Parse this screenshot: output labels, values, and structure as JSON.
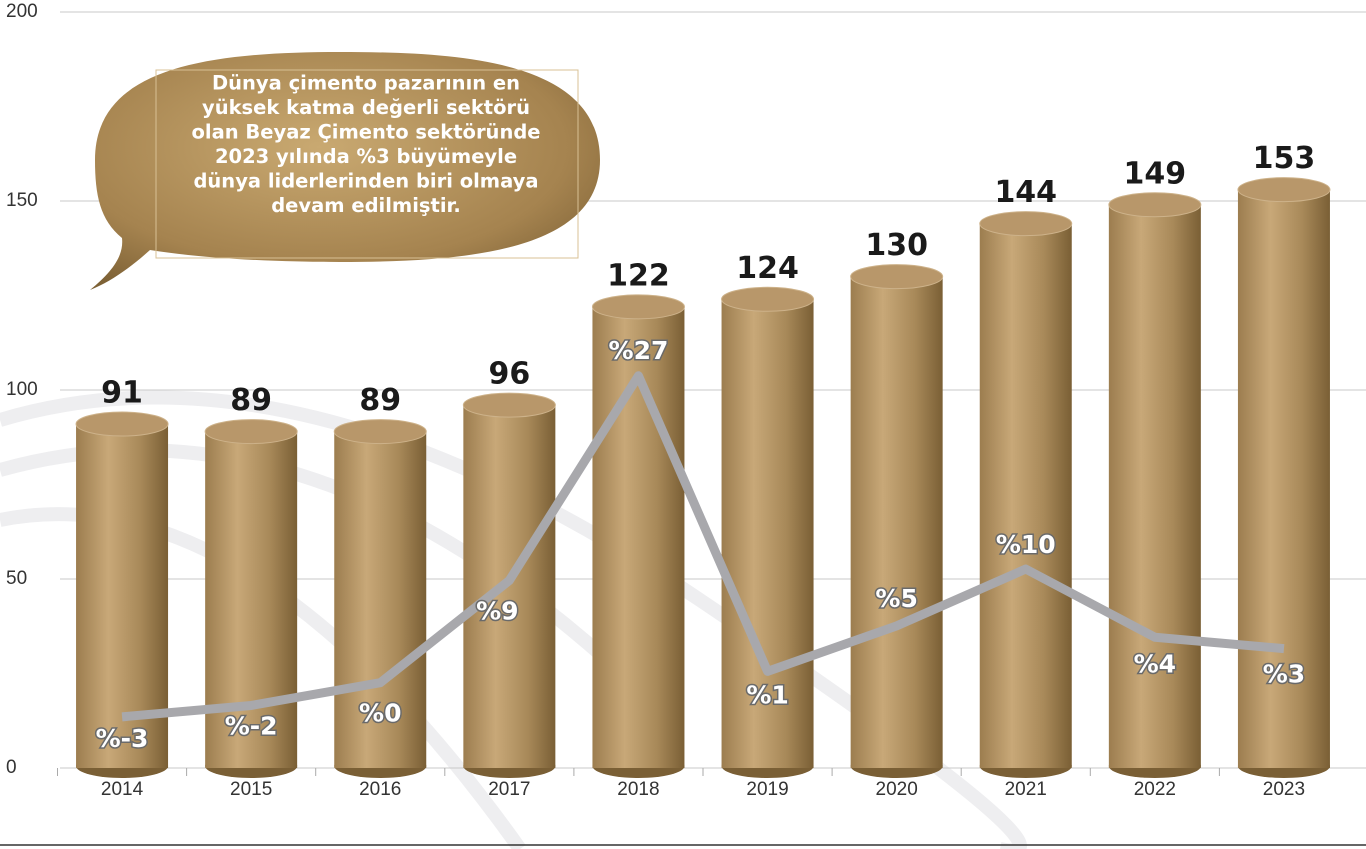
{
  "chart_data": {
    "type": "bar",
    "annotation": [
      "Dünya çimento pazarının en",
      "yüksek katma değerli sektörü",
      "olan Beyaz Çimento sektöründe",
      "2023 yılında %3 büyümeyle",
      "dünya liderlerinden biri olmaya",
      "devam edilmiştir."
    ],
    "categories": [
      "2014",
      "2015",
      "2016",
      "2017",
      "2018",
      "2019",
      "2020",
      "2021",
      "2022",
      "2023"
    ],
    "series": [
      {
        "type": "bar",
        "color": "#b8976a",
        "values": [
          91,
          89,
          89,
          96,
          122,
          124,
          130,
          144,
          149,
          153
        ]
      },
      {
        "type": "line",
        "color": "#a8a8ac",
        "axis": "y2",
        "values": [
          -3,
          -2,
          0,
          9,
          27,
          1,
          5,
          10,
          4,
          3
        ],
        "value_labels": [
          "%-3",
          "%-2",
          "%0",
          "%9",
          "%27",
          "%1",
          "%5",
          "%10",
          "%4",
          "%3"
        ]
      }
    ],
    "ylim": [
      0,
      200
    ],
    "yticks": [
      0,
      50,
      100,
      150,
      200
    ],
    "y2lim": [
      -7.5,
      59
    ],
    "grid": true
  }
}
